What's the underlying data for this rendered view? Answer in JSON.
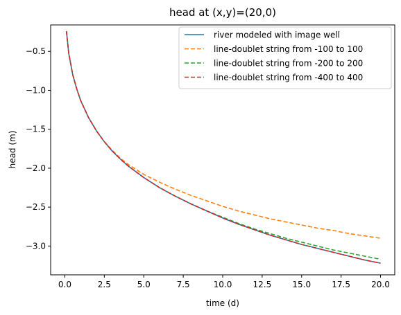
{
  "chart_data": {
    "type": "line",
    "title": "head at (x,y)=(20,0)",
    "xlabel": "time (d)",
    "ylabel": "head (m)",
    "xlim": [
      -0.9,
      20.9
    ],
    "ylim": [
      -3.37,
      -0.16
    ],
    "xticks": [
      0.0,
      2.5,
      5.0,
      7.5,
      10.0,
      12.5,
      15.0,
      17.5,
      20.0
    ],
    "xtick_labels": [
      "0.0",
      "2.5",
      "5.0",
      "7.5",
      "10.0",
      "12.5",
      "15.0",
      "17.5",
      "20.0"
    ],
    "yticks": [
      -0.5,
      -1.0,
      -1.5,
      -2.0,
      -2.5,
      -3.0
    ],
    "ytick_labels": [
      "−0.5",
      "−1.0",
      "−1.5",
      "−2.0",
      "−2.5",
      "−3.0"
    ],
    "grid": false,
    "legend_position": "top-right",
    "x": [
      0.1,
      0.25,
      0.5,
      0.75,
      1.0,
      1.5,
      2.0,
      2.5,
      3.0,
      3.5,
      4.0,
      5.0,
      6.0,
      7.0,
      8.0,
      9.0,
      10.0,
      11.0,
      12.0,
      13.0,
      14.0,
      15.0,
      16.0,
      17.0,
      18.0,
      19.0,
      20.0
    ],
    "series": [
      {
        "name": "river modeled with image well",
        "color": "#1f77b4",
        "dash": "solid",
        "values": [
          -0.24,
          -0.53,
          -0.8,
          -0.98,
          -1.13,
          -1.35,
          -1.52,
          -1.66,
          -1.78,
          -1.88,
          -1.97,
          -2.12,
          -2.25,
          -2.36,
          -2.46,
          -2.55,
          -2.64,
          -2.72,
          -2.79,
          -2.86,
          -2.92,
          -2.98,
          -3.03,
          -3.08,
          -3.13,
          -3.18,
          -3.22
        ]
      },
      {
        "name": "line-doublet string from -100 to 100",
        "color": "#ff7f0e",
        "dash": "dashed",
        "values": [
          -0.24,
          -0.53,
          -0.8,
          -0.98,
          -1.13,
          -1.35,
          -1.52,
          -1.66,
          -1.77,
          -1.87,
          -1.95,
          -2.08,
          -2.18,
          -2.27,
          -2.35,
          -2.42,
          -2.49,
          -2.55,
          -2.6,
          -2.65,
          -2.69,
          -2.73,
          -2.77,
          -2.8,
          -2.84,
          -2.87,
          -2.9
        ]
      },
      {
        "name": "line-doublet string from -200 to 200",
        "color": "#2ca02c",
        "dash": "dashed",
        "values": [
          -0.24,
          -0.53,
          -0.8,
          -0.98,
          -1.13,
          -1.35,
          -1.52,
          -1.66,
          -1.78,
          -1.88,
          -1.97,
          -2.12,
          -2.25,
          -2.36,
          -2.46,
          -2.55,
          -2.63,
          -2.71,
          -2.78,
          -2.84,
          -2.9,
          -2.95,
          -3.0,
          -3.05,
          -3.09,
          -3.13,
          -3.17
        ]
      },
      {
        "name": "line-doublet string from -400 to 400",
        "color": "#d62728",
        "dash": "dashed",
        "values": [
          -0.24,
          -0.53,
          -0.8,
          -0.98,
          -1.13,
          -1.35,
          -1.52,
          -1.66,
          -1.78,
          -1.88,
          -1.97,
          -2.12,
          -2.25,
          -2.36,
          -2.46,
          -2.55,
          -2.64,
          -2.72,
          -2.79,
          -2.86,
          -2.92,
          -2.98,
          -3.03,
          -3.08,
          -3.13,
          -3.18,
          -3.22
        ]
      }
    ]
  }
}
